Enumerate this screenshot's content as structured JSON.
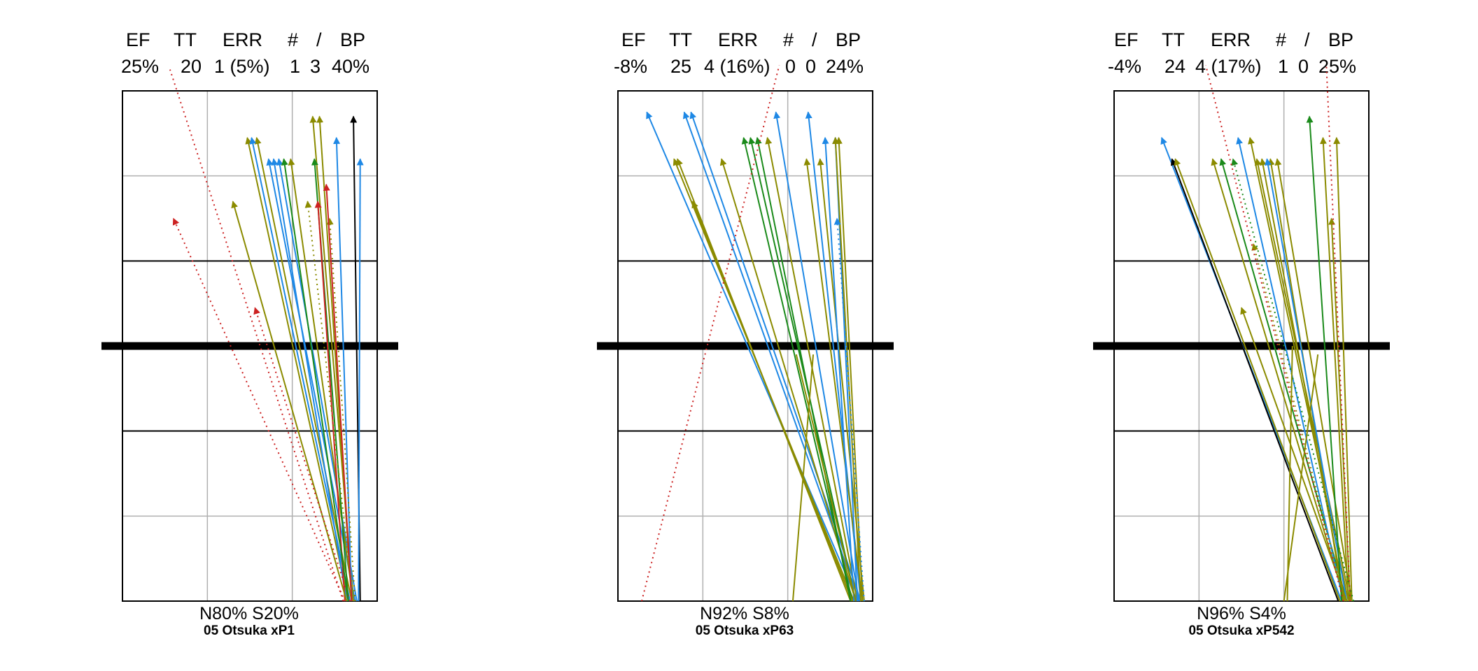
{
  "colors": {
    "blue": "#1e88e5",
    "olive": "#8b8b00",
    "green": "#1a8a1a",
    "red": "#cc2222",
    "black": "#000000",
    "grid": "#b0b0b0",
    "net": "#000000"
  },
  "stat_headers": [
    "EF",
    "TT",
    "ERR",
    "#",
    "/",
    "BP"
  ],
  "chart_data": [
    {
      "type": "vector-plot",
      "stats": {
        "ef": "25%",
        "tt": "20",
        "err": "1 (5%)",
        "hash": "1",
        "slash": "3",
        "bp": "40%"
      },
      "zone_label": "N80%  S20%",
      "player_label": "05 Otsuka  xP1",
      "xlim": [
        0,
        3
      ],
      "ylim": [
        0,
        6
      ],
      "arrows": [
        {
          "x1": 2.66,
          "y1": 0.0,
          "x2": 1.47,
          "y2": 5.45,
          "color": "olive"
        },
        {
          "x1": 2.7,
          "y1": 0.0,
          "x2": 1.58,
          "y2": 5.45,
          "color": "olive"
        },
        {
          "x1": 2.68,
          "y1": 0.0,
          "x2": 1.52,
          "y2": 5.45,
          "color": "blue"
        },
        {
          "x1": 2.74,
          "y1": 0.0,
          "x2": 1.72,
          "y2": 5.2,
          "color": "blue"
        },
        {
          "x1": 2.76,
          "y1": 0.0,
          "x2": 1.84,
          "y2": 5.2,
          "color": "blue"
        },
        {
          "x1": 2.64,
          "y1": 0.0,
          "x2": 1.78,
          "y2": 5.2,
          "color": "blue"
        },
        {
          "x1": 2.72,
          "y1": 0.0,
          "x2": 1.98,
          "y2": 5.2,
          "color": "olive"
        },
        {
          "x1": 2.72,
          "y1": 0.0,
          "x2": 2.24,
          "y2": 5.7,
          "color": "olive"
        },
        {
          "x1": 2.7,
          "y1": 0.0,
          "x2": 2.32,
          "y2": 5.7,
          "color": "olive"
        },
        {
          "x1": 2.7,
          "y1": 0.0,
          "x2": 2.52,
          "y2": 5.45,
          "color": "blue"
        },
        {
          "x1": 2.8,
          "y1": 0.0,
          "x2": 2.72,
          "y2": 5.7,
          "color": "black"
        },
        {
          "x1": 2.78,
          "y1": 0.0,
          "x2": 2.8,
          "y2": 5.2,
          "color": "blue"
        },
        {
          "x1": 2.66,
          "y1": 0.0,
          "x2": 2.26,
          "y2": 5.2,
          "color": "green"
        },
        {
          "x1": 2.62,
          "y1": 0.0,
          "x2": 2.3,
          "y2": 4.7,
          "color": "red"
        },
        {
          "x1": 2.64,
          "y1": 0.0,
          "x2": 1.3,
          "y2": 4.7,
          "color": "olive"
        },
        {
          "x1": 2.74,
          "y1": 0.0,
          "x2": 2.44,
          "y2": 4.5,
          "color": "olive",
          "dashed": true
        },
        {
          "x1": 2.72,
          "y1": 0.0,
          "x2": 2.18,
          "y2": 4.7,
          "color": "olive",
          "dashed": true
        },
        {
          "x1": 2.62,
          "y1": 0.0,
          "x2": 0.6,
          "y2": 4.5,
          "color": "red",
          "dashed": true
        },
        {
          "x1": 2.68,
          "y1": 0.0,
          "x2": 1.56,
          "y2": 3.45,
          "color": "red",
          "dashed": true
        },
        {
          "x1": 2.6,
          "y1": 0.0,
          "x2": 0.56,
          "y2": 6.25,
          "color": "red",
          "dashed": true,
          "head": false
        },
        {
          "x1": 2.7,
          "y1": 0.0,
          "x2": 2.4,
          "y2": 4.9,
          "color": "red"
        },
        {
          "x1": 2.66,
          "y1": 0.0,
          "x2": 1.9,
          "y2": 5.2,
          "color": "green"
        }
      ]
    },
    {
      "type": "vector-plot",
      "stats": {
        "ef": "-8%",
        "tt": "25",
        "err": "4 (16%)",
        "hash": "0",
        "slash": "0",
        "bp": "24%"
      },
      "zone_label": "N92%  S8%",
      "player_label": "05 Otsuka  xP63",
      "xlim": [
        0,
        3
      ],
      "ylim": [
        0,
        6
      ],
      "arrows": [
        {
          "x1": 2.82,
          "y1": 0.0,
          "x2": 0.34,
          "y2": 5.75,
          "color": "blue"
        },
        {
          "x1": 2.84,
          "y1": 0.0,
          "x2": 0.78,
          "y2": 5.75,
          "color": "blue"
        },
        {
          "x1": 2.86,
          "y1": 0.0,
          "x2": 0.86,
          "y2": 5.75,
          "color": "blue"
        },
        {
          "x1": 2.78,
          "y1": 0.0,
          "x2": 0.66,
          "y2": 5.2,
          "color": "olive"
        },
        {
          "x1": 2.74,
          "y1": 0.0,
          "x2": 0.7,
          "y2": 5.2,
          "color": "olive"
        },
        {
          "x1": 2.8,
          "y1": 0.0,
          "x2": 1.22,
          "y2": 5.2,
          "color": "olive"
        },
        {
          "x1": 2.76,
          "y1": 0.0,
          "x2": 1.48,
          "y2": 5.45,
          "color": "green"
        },
        {
          "x1": 2.8,
          "y1": 0.0,
          "x2": 1.56,
          "y2": 5.45,
          "color": "green"
        },
        {
          "x1": 2.82,
          "y1": 0.0,
          "x2": 1.76,
          "y2": 5.45,
          "color": "olive"
        },
        {
          "x1": 2.84,
          "y1": 0.0,
          "x2": 1.86,
          "y2": 5.75,
          "color": "blue"
        },
        {
          "x1": 2.86,
          "y1": 0.0,
          "x2": 2.24,
          "y2": 5.75,
          "color": "blue"
        },
        {
          "x1": 2.88,
          "y1": 0.0,
          "x2": 2.22,
          "y2": 5.2,
          "color": "olive"
        },
        {
          "x1": 2.9,
          "y1": 0.0,
          "x2": 2.38,
          "y2": 5.2,
          "color": "olive"
        },
        {
          "x1": 2.78,
          "y1": 0.0,
          "x2": 2.44,
          "y2": 5.45,
          "color": "blue"
        },
        {
          "x1": 2.82,
          "y1": 0.0,
          "x2": 2.56,
          "y2": 5.45,
          "color": "blue"
        },
        {
          "x1": 2.86,
          "y1": 0.0,
          "x2": 2.56,
          "y2": 5.45,
          "color": "olive"
        },
        {
          "x1": 2.88,
          "y1": 0.0,
          "x2": 2.6,
          "y2": 5.45,
          "color": "olive"
        },
        {
          "x1": 2.9,
          "y1": 0.0,
          "x2": 2.58,
          "y2": 4.5,
          "color": "blue",
          "dashed": true
        },
        {
          "x1": 2.76,
          "y1": 0.0,
          "x2": 0.88,
          "y2": 4.7,
          "color": "olive"
        },
        {
          "x1": 2.74,
          "y1": 0.0,
          "x2": 1.64,
          "y2": 5.45,
          "color": "green"
        },
        {
          "x1": 0.28,
          "y1": 0.0,
          "x2": 1.9,
          "y2": 6.3,
          "color": "red",
          "dashed": true,
          "head": false
        },
        {
          "x1": 2.06,
          "y1": 0.0,
          "x2": 2.3,
          "y2": 2.9,
          "color": "olive",
          "head": false
        },
        {
          "x1": 2.8,
          "y1": 0.0,
          "x2": 2.1,
          "y2": 2.9,
          "color": "olive",
          "head": false
        }
      ]
    },
    {
      "type": "vector-plot",
      "stats": {
        "ef": "-4%",
        "tt": "24",
        "err": "4 (17%)",
        "hash": "1",
        "slash": "0",
        "bp": "25%"
      },
      "zone_label": "N96%  S4%",
      "player_label": "05 Otsuka  xP542",
      "xlim": [
        0,
        3
      ],
      "ylim": [
        0,
        6
      ],
      "arrows": [
        {
          "x1": 2.68,
          "y1": 0.0,
          "x2": 0.56,
          "y2": 5.45,
          "color": "blue"
        },
        {
          "x1": 2.64,
          "y1": 0.0,
          "x2": 0.68,
          "y2": 5.2,
          "color": "black"
        },
        {
          "x1": 2.66,
          "y1": 0.0,
          "x2": 0.72,
          "y2": 5.2,
          "color": "olive"
        },
        {
          "x1": 2.72,
          "y1": 0.0,
          "x2": 1.16,
          "y2": 5.2,
          "color": "olive"
        },
        {
          "x1": 2.74,
          "y1": 0.0,
          "x2": 1.26,
          "y2": 5.2,
          "color": "green"
        },
        {
          "x1": 2.7,
          "y1": 0.0,
          "x2": 1.46,
          "y2": 5.45,
          "color": "blue"
        },
        {
          "x1": 2.76,
          "y1": 0.0,
          "x2": 1.6,
          "y2": 5.45,
          "color": "olive"
        },
        {
          "x1": 2.78,
          "y1": 0.0,
          "x2": 1.68,
          "y2": 5.2,
          "color": "olive"
        },
        {
          "x1": 2.72,
          "y1": 0.0,
          "x2": 1.74,
          "y2": 5.2,
          "color": "olive"
        },
        {
          "x1": 2.7,
          "y1": 0.0,
          "x2": 1.84,
          "y2": 5.2,
          "color": "olive"
        },
        {
          "x1": 2.8,
          "y1": 0.0,
          "x2": 1.92,
          "y2": 5.2,
          "color": "olive"
        },
        {
          "x1": 2.74,
          "y1": 0.0,
          "x2": 1.8,
          "y2": 5.2,
          "color": "blue"
        },
        {
          "x1": 2.68,
          "y1": 0.0,
          "x2": 2.3,
          "y2": 5.7,
          "color": "green"
        },
        {
          "x1": 2.76,
          "y1": 0.0,
          "x2": 2.46,
          "y2": 5.45,
          "color": "olive"
        },
        {
          "x1": 2.8,
          "y1": 0.0,
          "x2": 2.62,
          "y2": 5.45,
          "color": "olive"
        },
        {
          "x1": 2.78,
          "y1": 0.0,
          "x2": 2.56,
          "y2": 4.5,
          "color": "olive"
        },
        {
          "x1": 2.74,
          "y1": 0.0,
          "x2": 1.5,
          "y2": 3.45,
          "color": "olive"
        },
        {
          "x1": 2.72,
          "y1": 0.0,
          "x2": 1.64,
          "y2": 4.2,
          "color": "olive",
          "dashed": true
        },
        {
          "x1": 2.82,
          "y1": 0.0,
          "x2": 1.4,
          "y2": 5.2,
          "color": "green",
          "dashed": true
        },
        {
          "x1": 2.78,
          "y1": 0.0,
          "x2": 2.5,
          "y2": 6.3,
          "color": "red",
          "dashed": true,
          "head": false
        },
        {
          "x1": 2.7,
          "y1": 0.0,
          "x2": 1.08,
          "y2": 6.3,
          "color": "red",
          "dashed": true,
          "head": false
        },
        {
          "x1": 2.04,
          "y1": 0.0,
          "x2": 2.1,
          "y2": 3.0,
          "color": "olive",
          "head": false
        },
        {
          "x1": 2.0,
          "y1": 0.0,
          "x2": 2.4,
          "y2": 2.9,
          "color": "olive",
          "head": false
        }
      ]
    }
  ]
}
